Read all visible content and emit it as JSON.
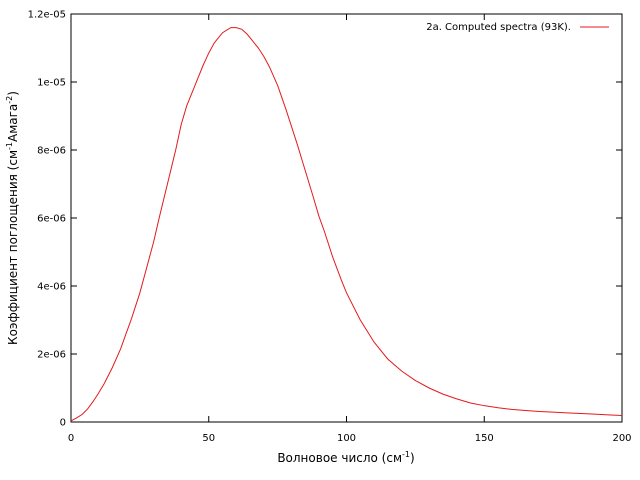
{
  "chart_data": {
    "type": "line",
    "title": "",
    "xlabel": {
      "text": "Волновое число (см",
      "sup": "-1",
      "tail": ")"
    },
    "ylabel": {
      "pre": "Коэффициент поглощения (см",
      "sup1": "-1",
      "mid": "Амага",
      "sup2": "-2",
      "post": ")"
    },
    "xlim": [
      0,
      200
    ],
    "ylim": [
      0,
      1.2e-05
    ],
    "xticks": [
      {
        "value": 0,
        "label": "0"
      },
      {
        "value": 50,
        "label": "50"
      },
      {
        "value": 100,
        "label": "100"
      },
      {
        "value": 150,
        "label": "150"
      },
      {
        "value": 200,
        "label": "200"
      }
    ],
    "yticks": [
      {
        "value": 0,
        "label": "0"
      },
      {
        "value": 2e-06,
        "label": "2e-06"
      },
      {
        "value": 4e-06,
        "label": "4e-06"
      },
      {
        "value": 6e-06,
        "label": "6e-06"
      },
      {
        "value": 8e-06,
        "label": "8e-06"
      },
      {
        "value": 1e-05,
        "label": "1e-05"
      },
      {
        "value": 1.2e-05,
        "label": "1.2e-05"
      }
    ],
    "grid": false,
    "legend_position": "top-right",
    "series": [
      {
        "name": "2a. Computed spectra (93K).",
        "color": "#e41a1c",
        "x": [
          0,
          2,
          4,
          6,
          8,
          10,
          12,
          15,
          18,
          20,
          22,
          25,
          28,
          30,
          32,
          35,
          38,
          40,
          42,
          45,
          48,
          50,
          52,
          55,
          58,
          60,
          62,
          64,
          66,
          68,
          70,
          72,
          75,
          78,
          80,
          82,
          85,
          88,
          90,
          92,
          95,
          98,
          100,
          105,
          110,
          115,
          120,
          125,
          130,
          135,
          140,
          145,
          150,
          155,
          160,
          165,
          170,
          175,
          180,
          185,
          190,
          195,
          200
        ],
        "y": [
          3e-08,
          1.2e-07,
          2.2e-07,
          3.8e-07,
          6e-07,
          8.5e-07,
          1.12e-06,
          1.6e-06,
          2.15e-06,
          2.6e-06,
          3.05e-06,
          3.8e-06,
          4.7e-06,
          5.3e-06,
          6e-06,
          7e-06,
          8e-06,
          8.75e-06,
          9.3e-06,
          9.9e-06,
          1.05e-05,
          1.085e-05,
          1.115e-05,
          1.145e-05,
          1.16e-05,
          1.16e-05,
          1.155e-05,
          1.14e-05,
          1.12e-05,
          1.1e-05,
          1.075e-05,
          1.045e-05,
          9.9e-06,
          9.2e-06,
          8.7e-06,
          8.2e-06,
          7.4e-06,
          6.6e-06,
          6.05e-06,
          5.6e-06,
          4.85e-06,
          4.2e-06,
          3.8e-06,
          3e-06,
          2.35e-06,
          1.85e-06,
          1.5e-06,
          1.22e-06,
          1e-06,
          8.2e-07,
          6.8e-07,
          5.6e-07,
          4.8e-07,
          4.2e-07,
          3.7e-07,
          3.4e-07,
          3.1e-07,
          2.9e-07,
          2.7e-07,
          2.5e-07,
          2.3e-07,
          2.1e-07,
          1.9e-07
        ]
      }
    ]
  }
}
